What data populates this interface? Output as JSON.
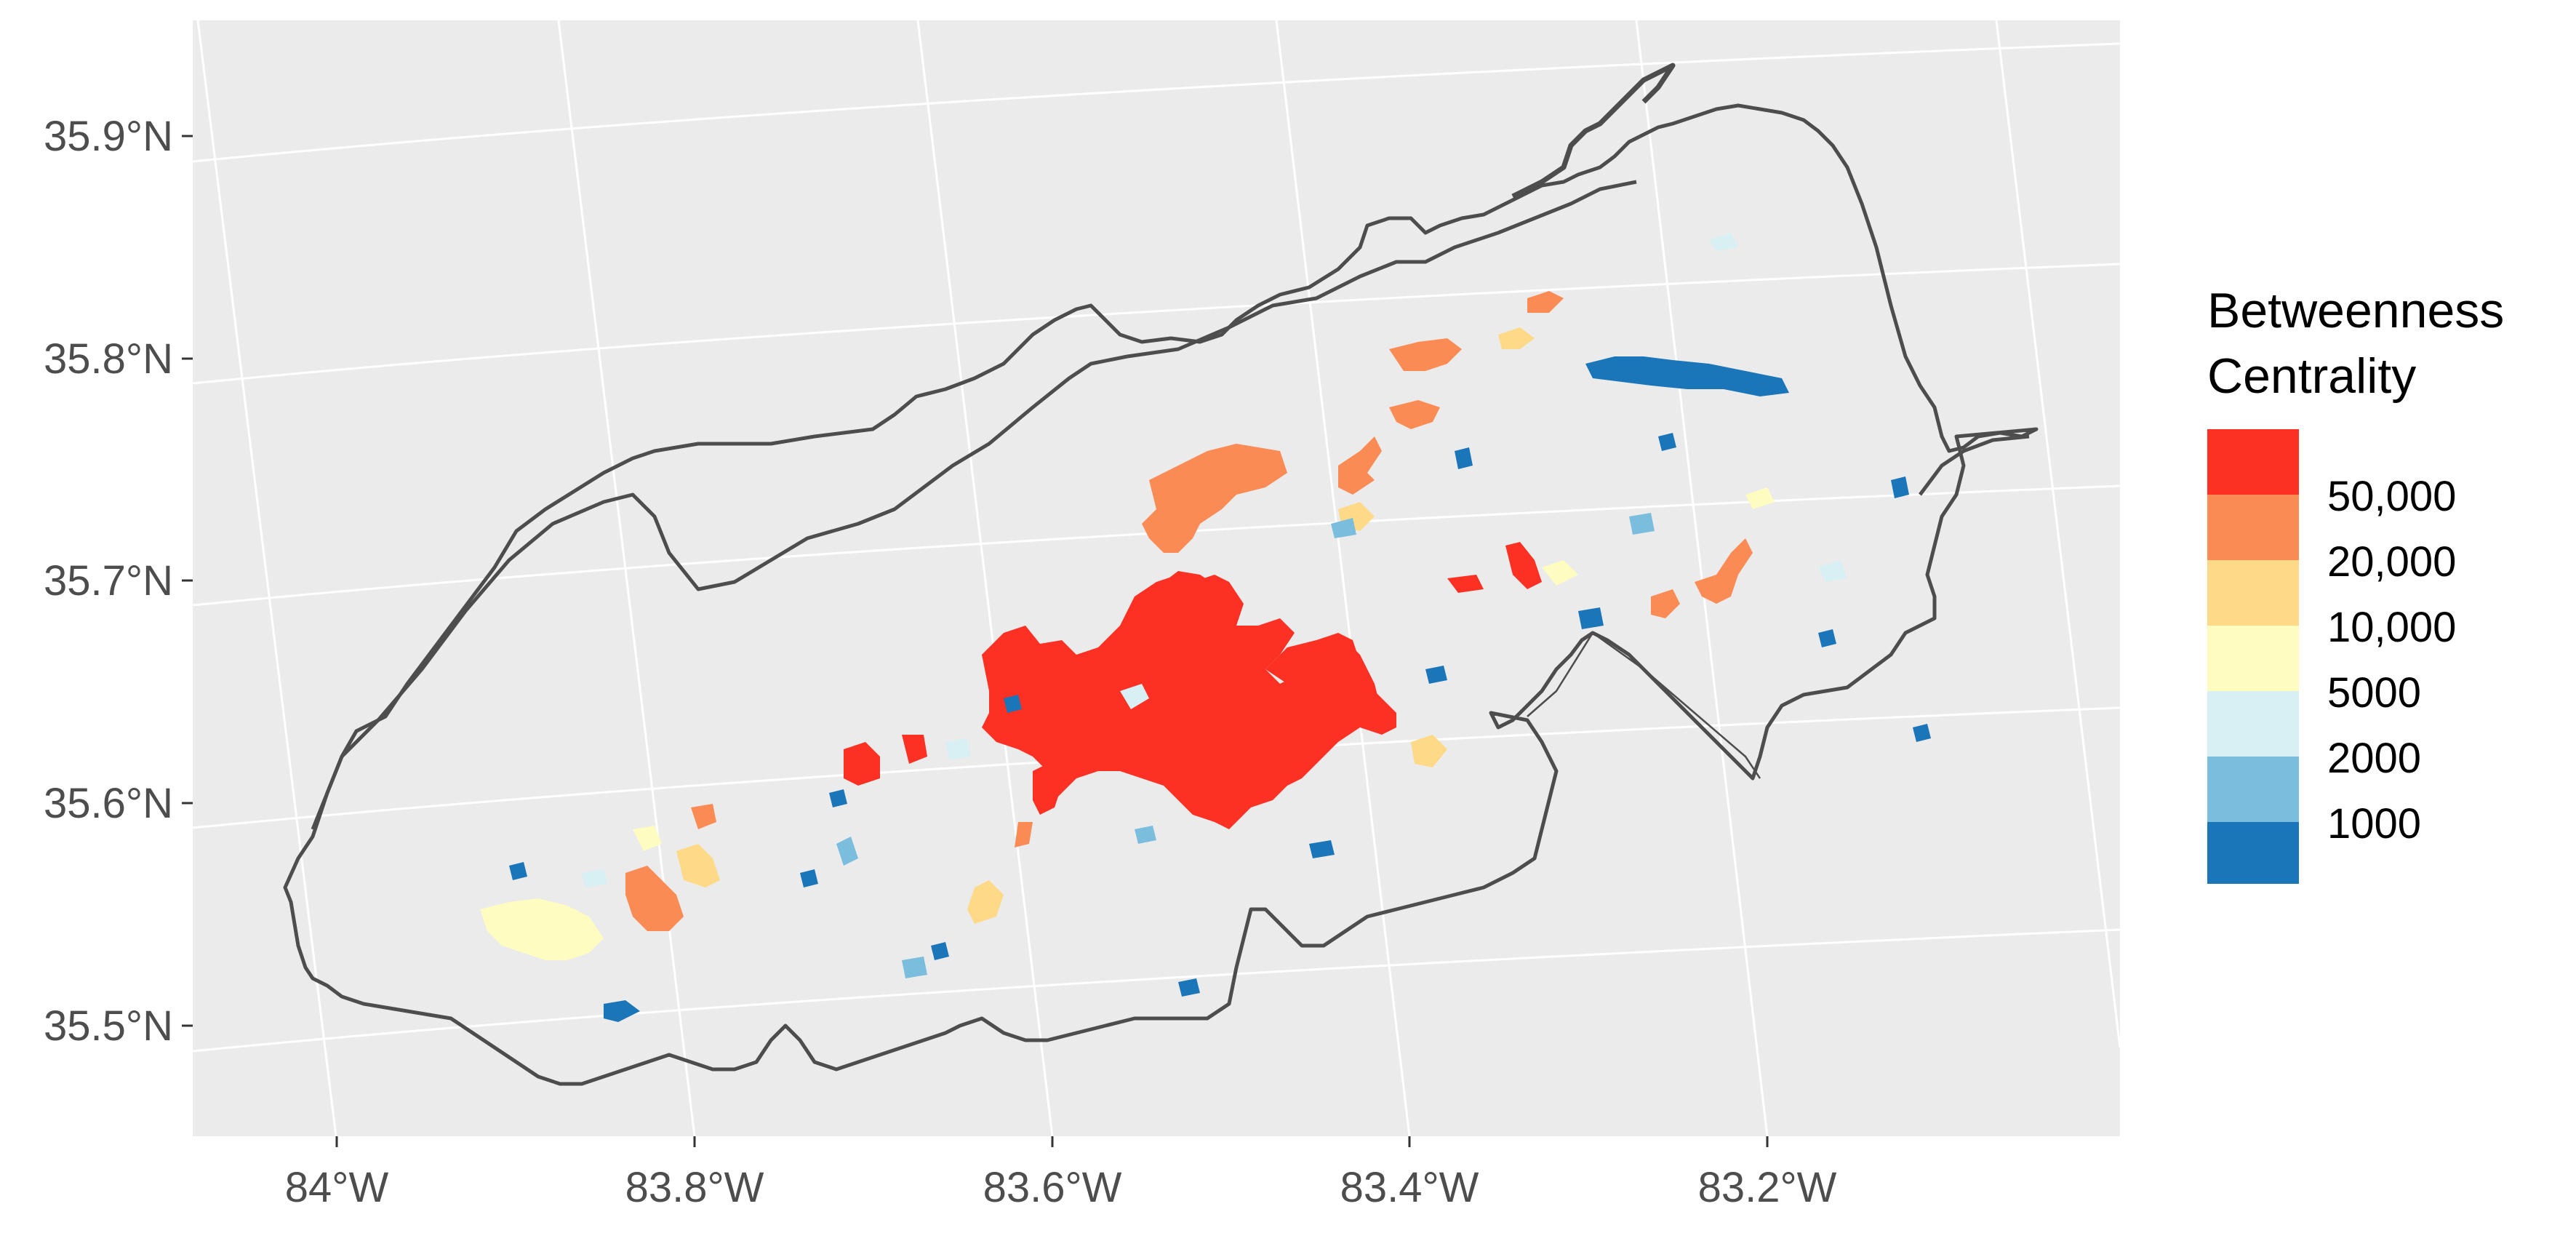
{
  "map": {
    "background": "#ebebeb",
    "gridline_color": "#ffffff",
    "boundary_color": "#4d4d4d",
    "y_ticks": [
      "35.9°N",
      "35.8°N",
      "35.7°N",
      "35.6°N",
      "35.5°N"
    ],
    "x_ticks": [
      "84°W",
      "83.8°W",
      "83.6°W",
      "83.4°W",
      "83.2°W"
    ]
  },
  "legend": {
    "title_line1": "Betweenness",
    "title_line2": "Centrality",
    "breaks": [
      "50,000",
      "20,000",
      "10,000",
      "5000",
      "2000",
      "1000"
    ],
    "colors": [
      "#fc3023",
      "#fb8b55",
      "#fed987",
      "#fefcc0",
      "#d8eff4",
      "#7bbddc",
      "#1a75b9"
    ]
  }
}
